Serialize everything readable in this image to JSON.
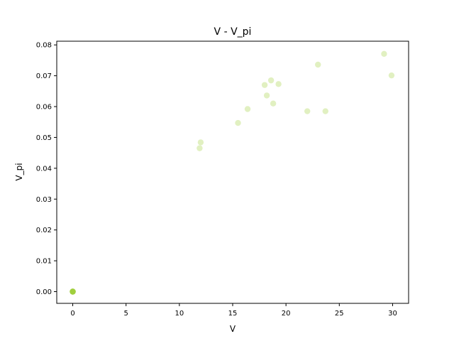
{
  "chart_data": {
    "type": "scatter",
    "title": "V - V_pi",
    "xlabel": "V",
    "ylabel": "V_pi",
    "xlim": [
      -1.5,
      31.5
    ],
    "ylim": [
      -0.0038,
      0.0812
    ],
    "xticks": [
      0,
      5,
      10,
      15,
      20,
      25,
      30
    ],
    "yticks": [
      0.0,
      0.01,
      0.02,
      0.03,
      0.04,
      0.05,
      0.06,
      0.07,
      0.08
    ],
    "xtick_labels": [
      "0",
      "5",
      "10",
      "15",
      "20",
      "25",
      "30"
    ],
    "ytick_labels": [
      "0.00",
      "0.01",
      "0.02",
      "0.03",
      "0.04",
      "0.05",
      "0.06",
      "0.07",
      "0.08"
    ],
    "grid": false,
    "marker_color": "#9acd32",
    "marker_alpha": 0.3,
    "points": [
      {
        "x": 0.0,
        "y": 0.0
      },
      {
        "x": 0.0,
        "y": 0.0
      },
      {
        "x": 0.0,
        "y": 0.0
      },
      {
        "x": 0.0,
        "y": 0.0
      },
      {
        "x": 0.0,
        "y": 0.0
      },
      {
        "x": 0.0,
        "y": 0.0
      },
      {
        "x": 0.0,
        "y": 0.0
      },
      {
        "x": 0.0,
        "y": 0.0
      },
      {
        "x": 11.9,
        "y": 0.0465
      },
      {
        "x": 12.0,
        "y": 0.0484
      },
      {
        "x": 15.5,
        "y": 0.0547
      },
      {
        "x": 16.4,
        "y": 0.0592
      },
      {
        "x": 18.0,
        "y": 0.067
      },
      {
        "x": 18.2,
        "y": 0.0636
      },
      {
        "x": 18.6,
        "y": 0.0685
      },
      {
        "x": 18.8,
        "y": 0.061
      },
      {
        "x": 19.3,
        "y": 0.0673
      },
      {
        "x": 22.0,
        "y": 0.0585
      },
      {
        "x": 23.0,
        "y": 0.0736
      },
      {
        "x": 23.7,
        "y": 0.0585
      },
      {
        "x": 29.2,
        "y": 0.0771
      },
      {
        "x": 29.9,
        "y": 0.0701
      }
    ]
  }
}
